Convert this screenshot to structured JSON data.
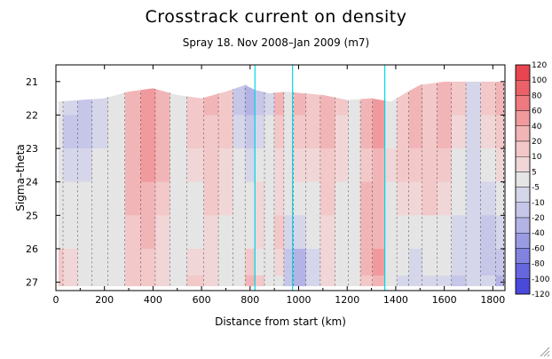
{
  "chart_data": {
    "type": "heatmap",
    "title": "Crosstrack current on density",
    "subtitle": "Spray 18. Nov 2008–Jan 2009 (m7)",
    "xlabel": "Distance from start (km)",
    "ylabel": "Sigma–theta",
    "xlim": [
      0,
      1850
    ],
    "ylim": [
      27.25,
      20.5
    ],
    "x_ticks": [
      "0",
      "200",
      "400",
      "600",
      "800",
      "1000",
      "1200",
      "1400",
      "1600",
      "1800"
    ],
    "x_tick_values": [
      0,
      200,
      400,
      600,
      800,
      1000,
      1200,
      1400,
      1600,
      1800
    ],
    "y_ticks": [
      "21",
      "22",
      "23",
      "24",
      "25",
      "26",
      "27"
    ],
    "y_tick_values": [
      21,
      22,
      23,
      24,
      25,
      26,
      27
    ],
    "vertical_lines_km": [
      820,
      975,
      1355
    ],
    "colorbar": {
      "levels": [
        "120",
        "100",
        "80",
        "60",
        "40",
        "20",
        "10",
        "5",
        "-5",
        "-10",
        "-20",
        "-40",
        "-60",
        "-80",
        "-100",
        "-120"
      ],
      "colors": [
        "#e8454f",
        "#eb6168",
        "#ee7a80",
        "#f09a9e",
        "#f2b5b7",
        "#f2c8c9",
        "#f1d6d7",
        "#e5e5e5",
        "#d6d6ea",
        "#c6c6e8",
        "#b3b3e6",
        "#9b9be4",
        "#8282e1",
        "#6666de",
        "#4a4ada"
      ]
    },
    "surface_km": [
      10,
      100,
      200,
      300,
      400,
      500,
      600,
      700,
      780,
      820,
      880,
      950,
      1020,
      1100,
      1200,
      1300,
      1380,
      1450,
      1500,
      1600,
      1700,
      1800,
      1845
    ],
    "surface_sigma": [
      21.6,
      21.55,
      21.5,
      21.3,
      21.2,
      21.4,
      21.5,
      21.3,
      21.1,
      21.25,
      21.35,
      21.3,
      21.35,
      21.4,
      21.55,
      21.5,
      21.6,
      21.3,
      21.1,
      21.0,
      21.0,
      21.0,
      21.0
    ],
    "field_sigma": [
      21.5,
      22.5,
      23.5,
      24.5,
      25.5,
      26.5,
      27.1
    ],
    "field": [
      {
        "km": 0,
        "values": [
          0,
          0,
          0,
          0,
          0,
          10,
          10
        ]
      },
      {
        "km": 60,
        "values": [
          -10,
          -20,
          -10,
          -5,
          0,
          5,
          5
        ]
      },
      {
        "km": 120,
        "values": [
          -20,
          -20,
          -10,
          -5,
          0,
          0,
          0
        ]
      },
      {
        "km": 180,
        "values": [
          -10,
          -10,
          -5,
          0,
          0,
          0,
          -5
        ]
      },
      {
        "km": 250,
        "values": [
          0,
          0,
          0,
          0,
          -5,
          -5,
          0
        ]
      },
      {
        "km": 320,
        "values": [
          20,
          20,
          20,
          20,
          10,
          10,
          10
        ]
      },
      {
        "km": 380,
        "values": [
          40,
          40,
          40,
          20,
          20,
          10,
          10
        ]
      },
      {
        "km": 440,
        "values": [
          20,
          20,
          20,
          10,
          5,
          5,
          5
        ]
      },
      {
        "km": 500,
        "values": [
          0,
          0,
          0,
          0,
          0,
          0,
          0
        ]
      },
      {
        "km": 580,
        "values": [
          10,
          10,
          5,
          0,
          0,
          5,
          10
        ]
      },
      {
        "km": 640,
        "values": [
          20,
          10,
          10,
          10,
          5,
          5,
          5
        ]
      },
      {
        "km": 700,
        "values": [
          10,
          10,
          5,
          5,
          0,
          0,
          0
        ]
      },
      {
        "km": 760,
        "values": [
          -20,
          -10,
          -5,
          0,
          0,
          0,
          0
        ]
      },
      {
        "km": 800,
        "values": [
          -40,
          -20,
          -10,
          0,
          0,
          10,
          20
        ]
      },
      {
        "km": 840,
        "values": [
          -20,
          -10,
          0,
          5,
          5,
          0,
          10
        ]
      },
      {
        "km": 880,
        "values": [
          -10,
          -5,
          0,
          0,
          0,
          0,
          0
        ]
      },
      {
        "km": 920,
        "values": [
          20,
          10,
          5,
          5,
          10,
          5,
          0
        ]
      },
      {
        "km": 960,
        "values": [
          0,
          0,
          0,
          0,
          -10,
          -20,
          -20
        ]
      },
      {
        "km": 1000,
        "values": [
          20,
          10,
          5,
          0,
          -10,
          -40,
          -40
        ]
      },
      {
        "km": 1060,
        "values": [
          10,
          10,
          5,
          0,
          -5,
          -10,
          -10
        ]
      },
      {
        "km": 1120,
        "values": [
          20,
          20,
          10,
          10,
          5,
          5,
          5
        ]
      },
      {
        "km": 1180,
        "values": [
          10,
          5,
          5,
          0,
          0,
          0,
          0
        ]
      },
      {
        "km": 1230,
        "values": [
          0,
          0,
          0,
          0,
          0,
          0,
          0
        ]
      },
      {
        "km": 1280,
        "values": [
          20,
          20,
          10,
          20,
          20,
          20,
          10
        ]
      },
      {
        "km": 1330,
        "values": [
          40,
          40,
          20,
          20,
          20,
          40,
          20
        ]
      },
      {
        "km": 1380,
        "values": [
          0,
          0,
          5,
          0,
          0,
          0,
          -5
        ]
      },
      {
        "km": 1430,
        "values": [
          10,
          10,
          10,
          5,
          0,
          -5,
          -10
        ]
      },
      {
        "km": 1480,
        "values": [
          20,
          20,
          10,
          5,
          0,
          -10,
          -10
        ]
      },
      {
        "km": 1540,
        "values": [
          10,
          10,
          10,
          10,
          0,
          -5,
          -10
        ]
      },
      {
        "km": 1600,
        "values": [
          20,
          20,
          10,
          5,
          0,
          -5,
          -10
        ]
      },
      {
        "km": 1660,
        "values": [
          10,
          5,
          0,
          -5,
          -10,
          -10,
          -20
        ]
      },
      {
        "km": 1720,
        "values": [
          -10,
          -10,
          -10,
          -10,
          -10,
          -10,
          -10
        ]
      },
      {
        "km": 1780,
        "values": [
          10,
          5,
          0,
          -10,
          -20,
          -20,
          -10
        ]
      },
      {
        "km": 1845,
        "values": [
          20,
          10,
          5,
          0,
          -10,
          -20,
          -40
        ]
      }
    ]
  }
}
